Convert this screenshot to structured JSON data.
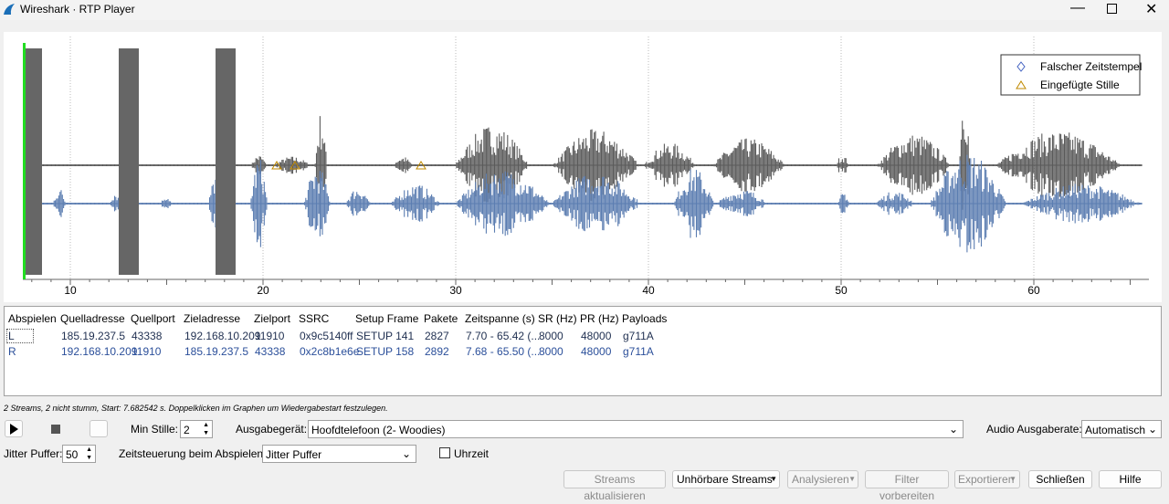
{
  "window": {
    "title": "Wireshark · RTP Player"
  },
  "graph": {
    "xticks": [
      10,
      20,
      30,
      40,
      50,
      60
    ],
    "legend": [
      "Falscher Zeitstempel",
      "Eingefügte Stille"
    ]
  },
  "table": {
    "headers": [
      "Abspielen",
      "Quelladresse",
      "Quellport",
      "Zieladresse",
      "Zielport",
      "SSRC",
      "Setup Frame",
      "Pakete",
      "Zeitspanne (s)",
      "SR (Hz)",
      "PR (Hz)",
      "Payloads"
    ],
    "rows": [
      [
        "L",
        "185.19.237.5",
        "43338",
        "192.168.10.209",
        "11910",
        "0x9c5140ff",
        "SETUP 141",
        "2827",
        "7.70 - 65.42 (...",
        "8000",
        "48000",
        "g711A"
      ],
      [
        "R",
        "192.168.10.209",
        "11910",
        "185.19.237.5",
        "43338",
        "0x2c8b1e6e",
        "SETUP 158",
        "2892",
        "7.68 - 65.50 (...",
        "8000",
        "48000",
        "g711A"
      ]
    ]
  },
  "status": "2 Streams, 2 nicht stumm, Start: 7.682542 s. Doppelklicken im Graphen um Wiedergabestart festzulegen.",
  "controls": {
    "min_silence_label": "Min Stille:",
    "min_silence": "2",
    "output_device_label": "Ausgabegerät:",
    "output_device": "Hoofdtelefoon (2- Woodies)",
    "audio_rate_label": "Audio Ausgaberate:",
    "audio_rate": "Automatisch",
    "jitter_label": "Jitter Puffer:",
    "jitter": "50",
    "timing_label": "Zeitsteuerung beim Abspielen:",
    "timing": "Jitter Puffer",
    "clock_label": "Uhrzeit"
  },
  "buttons": [
    "Streams aktualisieren",
    "Unhörbare Streams",
    "Analysieren",
    "Filter vorbereiten",
    "Exportieren",
    "Schließen",
    "Hilfe"
  ]
}
